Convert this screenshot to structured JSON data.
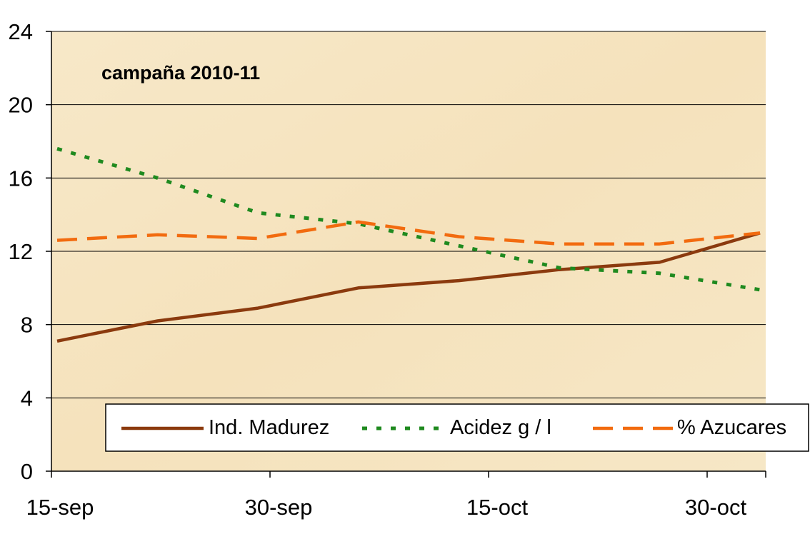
{
  "chart_data": {
    "type": "line",
    "title": "campaña 2010-11",
    "xlabel": "",
    "ylabel": "",
    "x": [
      "15-sep",
      "22-sep",
      "29-sep",
      "6-oct",
      "13-oct",
      "20-oct",
      "27-oct",
      "3-nov"
    ],
    "x_tick_labels": [
      "15-sep",
      "30-sep",
      "15-oct",
      "30-oct"
    ],
    "y_ticks": [
      "0",
      "4",
      "8",
      "12",
      "16",
      "20",
      "24"
    ],
    "ylim": [
      0,
      24
    ],
    "grid": true,
    "legend_position": "bottom",
    "series": [
      {
        "name": "Ind. Madurez",
        "style": "solid",
        "color": "#8B3A0E",
        "values": [
          7.1,
          8.2,
          8.9,
          10.0,
          10.4,
          11.0,
          11.4,
          13.0
        ]
      },
      {
        "name": "Acidez g / l",
        "style": "dotted",
        "color": "#1F8A1F",
        "values": [
          17.6,
          16.0,
          14.1,
          13.5,
          12.3,
          11.1,
          10.8,
          9.9
        ]
      },
      {
        "name": "% Azucares",
        "style": "dashed",
        "color": "#F26B0F",
        "values": [
          12.6,
          12.9,
          12.7,
          13.6,
          12.8,
          12.4,
          12.4,
          13.0
        ]
      }
    ],
    "colors": {
      "plot_background": "#F6E6C4",
      "grid": "#000000",
      "axis": "#000000"
    }
  }
}
